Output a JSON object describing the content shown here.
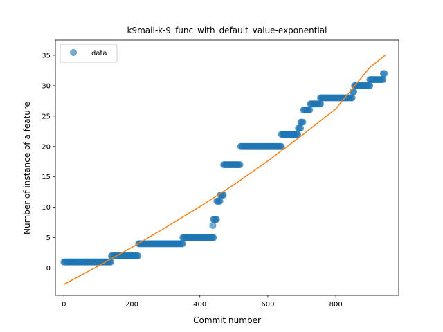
{
  "chart_data": {
    "type": "scatter",
    "title": "k9mail-k-9_func_with_default_value-exponential",
    "xlabel": "Commit number",
    "ylabel": "Number of instance of a feature",
    "xlim": [
      -25,
      985
    ],
    "ylim": [
      -4.5,
      37.5
    ],
    "xticks": [
      0,
      200,
      400,
      600,
      800
    ],
    "yticks": [
      0,
      5,
      10,
      15,
      20,
      25,
      30,
      35
    ],
    "legend": {
      "placement": "top-left",
      "entries": [
        "data"
      ]
    },
    "colors": {
      "data": "#1f77b4",
      "fit": "#ff7f0e"
    },
    "series": [
      {
        "name": "data",
        "kind": "points",
        "steps": [
          {
            "x0": 0,
            "x1": 140,
            "y": 1
          },
          {
            "x0": 140,
            "x1": 220,
            "y": 2
          },
          {
            "x0": 220,
            "x1": 350,
            "y": 4
          },
          {
            "x0": 350,
            "x1": 440,
            "y": 5
          },
          {
            "x0": 440,
            "x1": 450,
            "y": 8
          },
          {
            "x0": 450,
            "x1": 460,
            "y": 11
          },
          {
            "x0": 460,
            "x1": 470,
            "y": 12
          },
          {
            "x0": 470,
            "x1": 520,
            "y": 17
          },
          {
            "x0": 520,
            "x1": 640,
            "y": 20
          },
          {
            "x0": 640,
            "x1": 690,
            "y": 22
          },
          {
            "x0": 690,
            "x1": 697,
            "y": 23
          },
          {
            "x0": 697,
            "x1": 705,
            "y": 24
          },
          {
            "x0": 705,
            "x1": 725,
            "y": 26
          },
          {
            "x0": 725,
            "x1": 755,
            "y": 27
          },
          {
            "x0": 755,
            "x1": 850,
            "y": 28
          },
          {
            "x0": 850,
            "x1": 855,
            "y": 29
          },
          {
            "x0": 855,
            "x1": 900,
            "y": 30
          },
          {
            "x0": 900,
            "x1": 940,
            "y": 31
          },
          {
            "x0": 940,
            "x1": 945,
            "y": 32
          }
        ],
        "outliers": [
          {
            "x": 438,
            "y": 7
          }
        ]
      },
      {
        "kind": "fit-line",
        "x_range": [
          0,
          945
        ],
        "points": [
          [
            0,
            -2.7
          ],
          [
            100,
            0.3
          ],
          [
            200,
            3.4
          ],
          [
            300,
            6.7
          ],
          [
            400,
            10.1
          ],
          [
            500,
            13.7
          ],
          [
            600,
            17.6
          ],
          [
            700,
            21.8
          ],
          [
            800,
            26.2
          ],
          [
            900,
            33.0
          ],
          [
            945,
            35.0
          ]
        ]
      }
    ]
  }
}
